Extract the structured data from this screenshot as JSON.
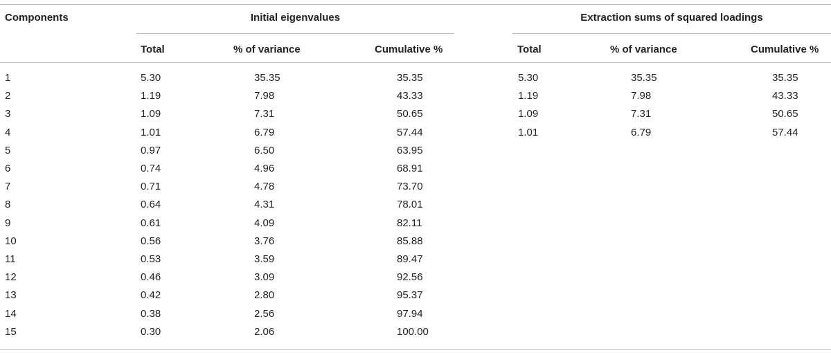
{
  "table": {
    "first_col_header": "Components",
    "group_headers": [
      "Initial eigenvalues",
      "Extraction sums of squared loadings"
    ],
    "sub_headers": [
      "Total",
      "% of variance",
      "Cumulative %",
      "Total",
      "% of variance",
      "Cumulative %"
    ],
    "rows": [
      [
        "1",
        "5.30",
        "35.35",
        "35.35",
        "5.30",
        "35.35",
        "35.35"
      ],
      [
        "2",
        "1.19",
        "7.98",
        "43.33",
        "1.19",
        "7.98",
        "43.33"
      ],
      [
        "3",
        "1.09",
        "7.31",
        "50.65",
        "1.09",
        "7.31",
        "50.65"
      ],
      [
        "4",
        "1.01",
        "6.79",
        "57.44",
        "1.01",
        "6.79",
        "57.44"
      ],
      [
        "5",
        "0.97",
        "6.50",
        "63.95",
        "",
        "",
        ""
      ],
      [
        "6",
        "0.74",
        "4.96",
        "68.91",
        "",
        "",
        ""
      ],
      [
        "7",
        "0.71",
        "4.78",
        "73.70",
        "",
        "",
        ""
      ],
      [
        "8",
        "0.64",
        "4.31",
        "78.01",
        "",
        "",
        ""
      ],
      [
        "9",
        "0.61",
        "4.09",
        "82.11",
        "",
        "",
        ""
      ],
      [
        "10",
        "0.56",
        "3.76",
        "85.88",
        "",
        "",
        ""
      ],
      [
        "11",
        "0.53",
        "3.59",
        "89.47",
        "",
        "",
        ""
      ],
      [
        "12",
        "0.46",
        "3.09",
        "92.56",
        "",
        "",
        ""
      ],
      [
        "13",
        "0.42",
        "2.80",
        "95.37",
        "",
        "",
        ""
      ],
      [
        "14",
        "0.38",
        "2.56",
        "97.94",
        "",
        "",
        ""
      ],
      [
        "15",
        "0.30",
        "2.06",
        "100.00",
        "",
        "",
        ""
      ]
    ]
  }
}
